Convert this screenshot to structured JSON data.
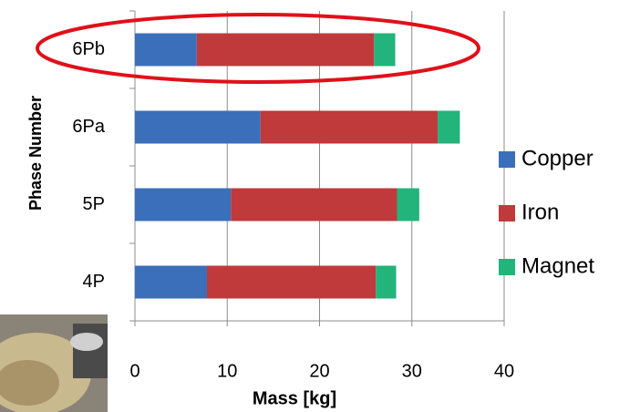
{
  "chart_data": {
    "type": "stacked-bar-horizontal",
    "categories": [
      "4P",
      "5P",
      "6Pa",
      "6Pb"
    ],
    "series": [
      {
        "name": "Copper",
        "color": "#3b6fb9",
        "values": [
          7.8,
          10.4,
          13.6,
          6.7
        ]
      },
      {
        "name": "Iron",
        "color": "#c0393b",
        "values": [
          18.3,
          18.0,
          19.2,
          19.2
        ]
      },
      {
        "name": "Magnet",
        "color": "#22b47a",
        "values": [
          2.2,
          2.4,
          2.4,
          2.3
        ]
      }
    ],
    "xlabel": "Mass  [kg]",
    "ylabel": "Phase Number",
    "xlim": [
      0,
      40
    ],
    "xticks": [
      0,
      10,
      20,
      30,
      40
    ],
    "grid": true,
    "legend": "right"
  }
}
